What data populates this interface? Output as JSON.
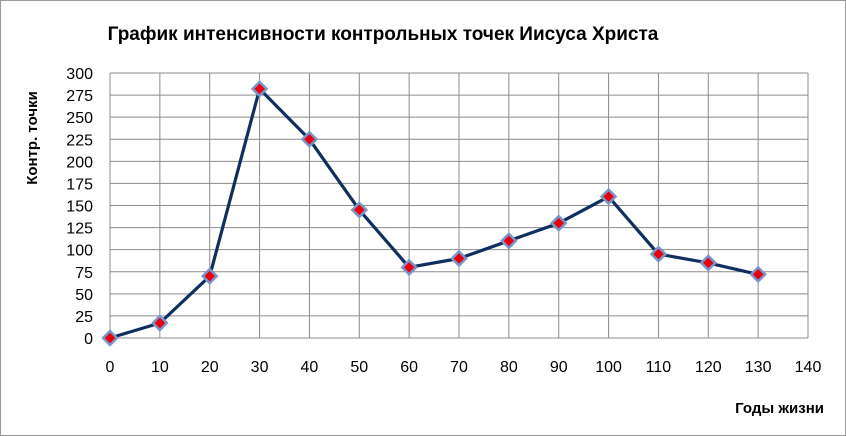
{
  "chart_data": {
    "type": "line",
    "title": "График интенсивности контрольных точек Иисуса Христа",
    "xlabel": "Годы  жизни",
    "ylabel": "Контр. точки",
    "x": [
      0,
      10,
      20,
      30,
      40,
      50,
      60,
      70,
      80,
      90,
      100,
      110,
      120,
      130
    ],
    "series": [
      {
        "values": [
          0,
          17,
          70,
          282,
          225,
          145,
          80,
          90,
          110,
          130,
          160,
          95,
          85,
          72
        ]
      }
    ],
    "xlim": [
      0,
      140
    ],
    "ylim": [
      0,
      300
    ],
    "xticks": [
      "0",
      "10",
      "20",
      "30",
      "40",
      "50",
      "60",
      "70",
      "80",
      "90",
      "100",
      "110",
      "120",
      "130",
      "140"
    ],
    "yticks": [
      "0",
      "25",
      "50",
      "75",
      "100",
      "125",
      "150",
      "175",
      "200",
      "225",
      "250",
      "275",
      "300"
    ],
    "grid": true,
    "legend": "none",
    "colors": {
      "line": "#0F2F5F",
      "marker_fill": "#E8000C",
      "marker_edge": "#7A96C8",
      "grid": "#8C8C8C"
    }
  }
}
